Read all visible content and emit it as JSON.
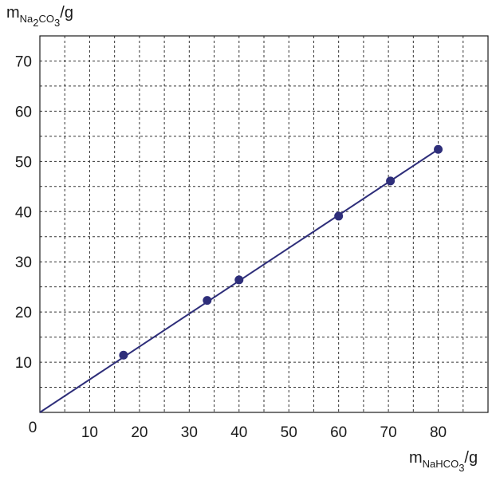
{
  "chart_data": {
    "type": "scatter",
    "title": "",
    "xlabel": {
      "base": "m",
      "sub": "NaHCO",
      "sub2": "3",
      "unit": "/g"
    },
    "ylabel": {
      "base": "m",
      "sub": "Na",
      "sub2": "2",
      "sub3": "CO",
      "sub4": "3",
      "unit": "/g"
    },
    "xlim": [
      0,
      90
    ],
    "ylim": [
      0,
      75
    ],
    "x_ticks": [
      10,
      20,
      30,
      40,
      50,
      60,
      70,
      80
    ],
    "y_ticks": [
      10,
      20,
      30,
      40,
      50,
      60,
      70
    ],
    "origin_label": "0",
    "x_grid_step": 5,
    "y_grid_step": 5,
    "grid": true,
    "colors": {
      "series": "#2e2e7a",
      "grid": "#333333",
      "axis": "#1a1a1a"
    },
    "series": [
      {
        "points": [
          {
            "x": 16.8,
            "y": 11.4
          },
          {
            "x": 33.6,
            "y": 22.3
          },
          {
            "x": 40,
            "y": 26.4
          },
          {
            "x": 60,
            "y": 39.1
          },
          {
            "x": 70.4,
            "y": 46.1
          },
          {
            "x": 80,
            "y": 52.4
          }
        ],
        "fit_line": {
          "from": [
            0,
            0
          ],
          "to": [
            80,
            52.4
          ]
        }
      }
    ]
  }
}
